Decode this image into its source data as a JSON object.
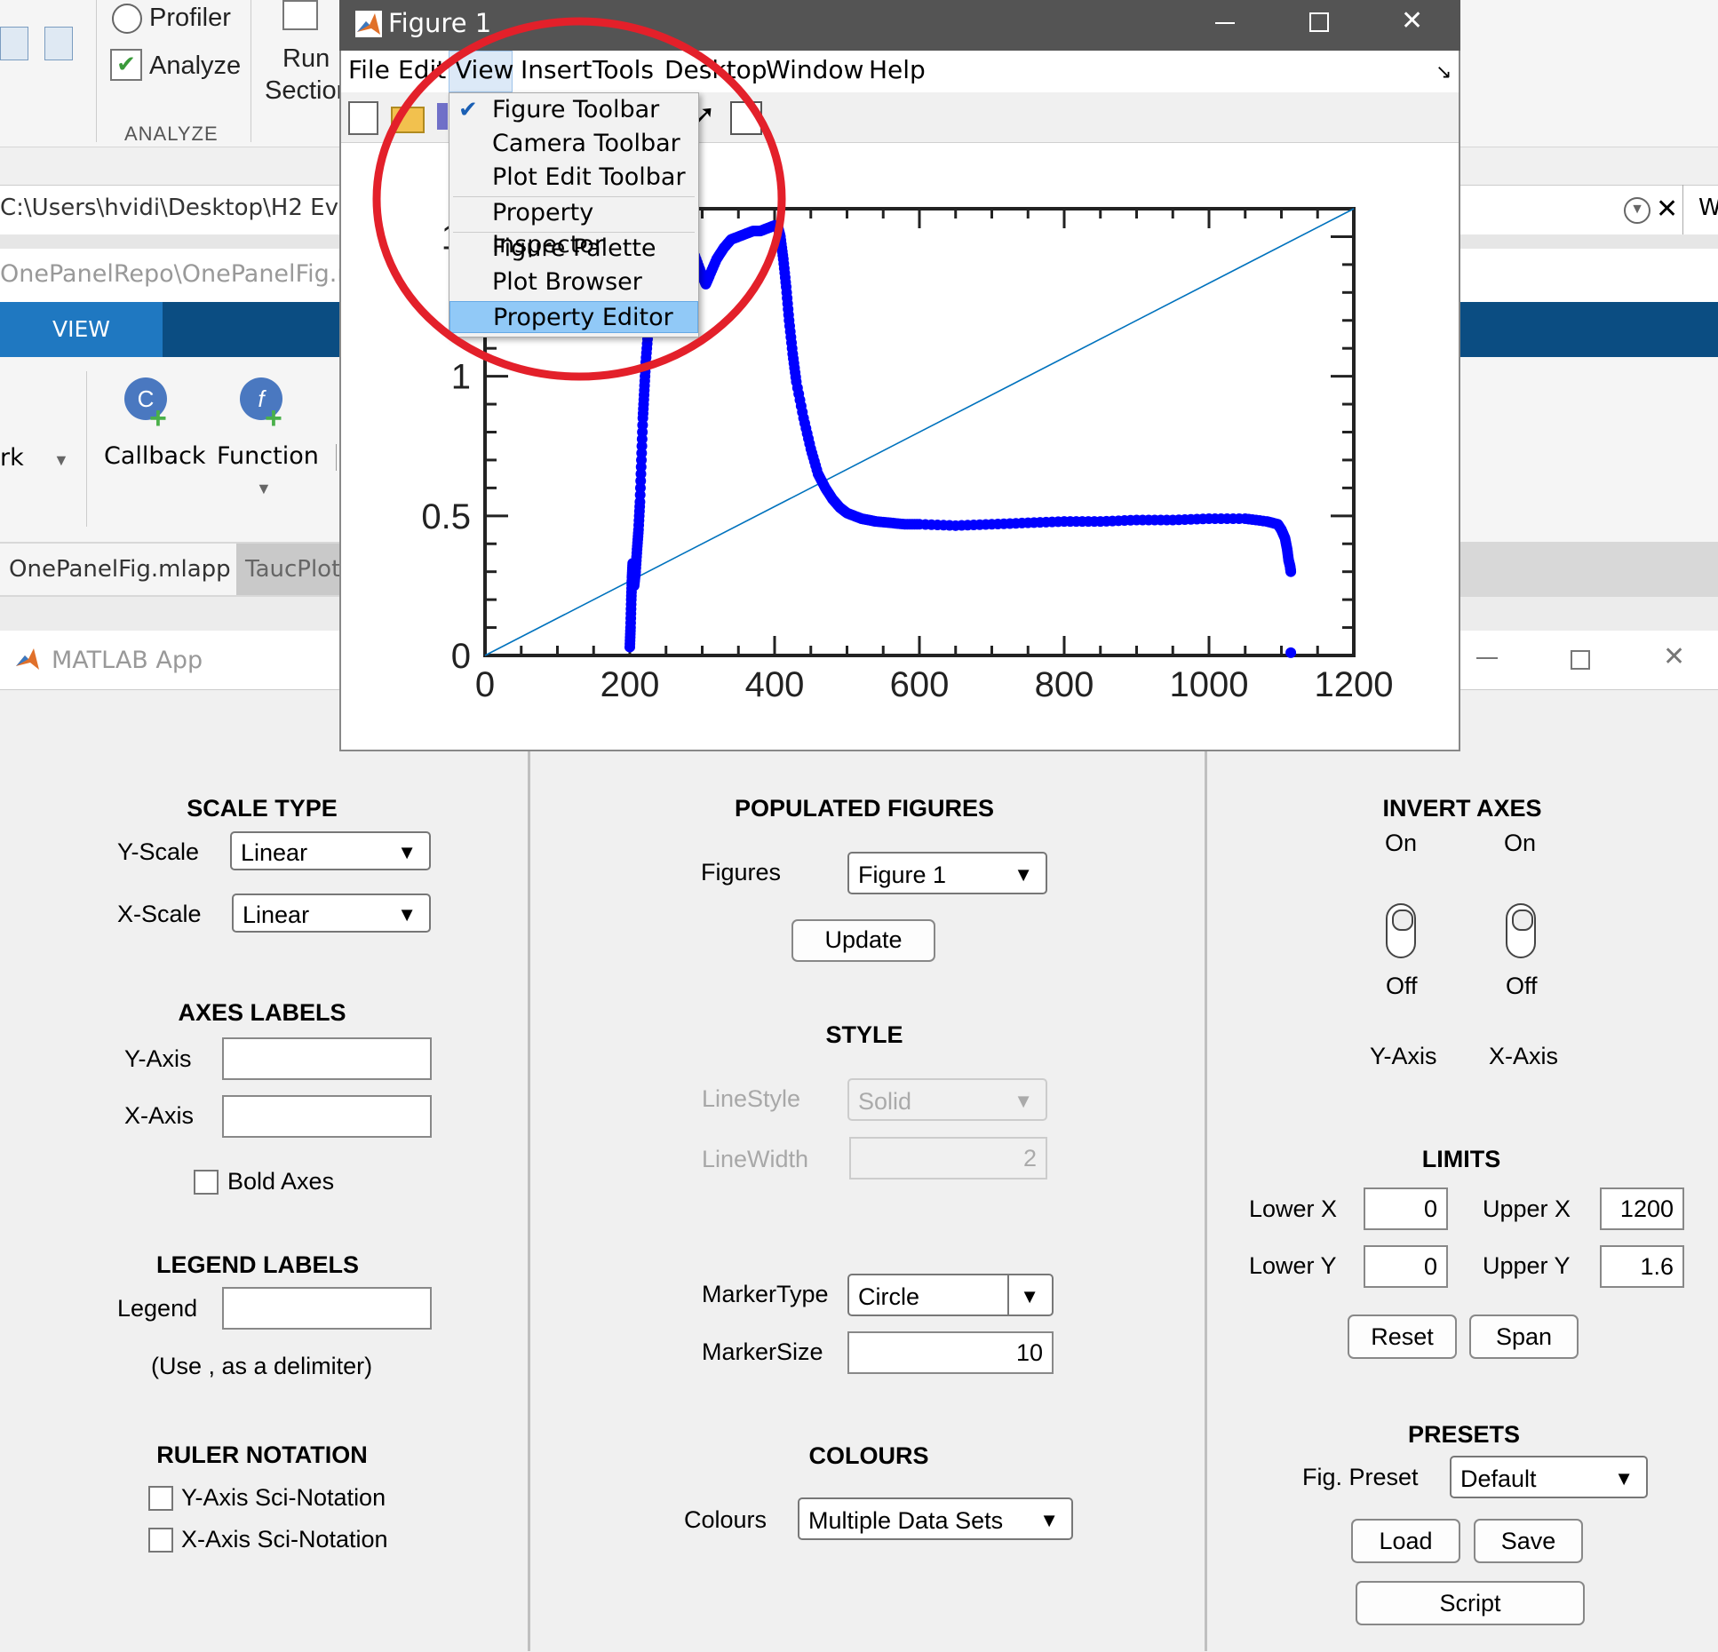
{
  "background": {
    "ribbon": {
      "profiler": "Profiler",
      "analyze": "Analyze",
      "run_section_1": "Run",
      "run_section_2": "Section",
      "group_label": "ANALYZE"
    },
    "path": "C:\\Users\\hvidi\\Desktop\\H2 Evolu",
    "app_path": "OnePanelRepo\\OnePanelFig.mlap",
    "view_tab": "VIEW",
    "toolstrip": {
      "callback": "Callback",
      "function": "Function",
      "left_cut": "rk"
    },
    "doc_tabs": [
      "OnePanelFig.mlapp",
      "TaucPlot"
    ],
    "right_edge_char": "W"
  },
  "figure": {
    "title": "Figure 1",
    "menus": [
      "File",
      "Edit",
      "View",
      "Insert",
      "Tools",
      "Desktop",
      "Window",
      "Help"
    ],
    "view_menu": {
      "items": [
        {
          "label": "Figure Toolbar",
          "checked": true
        },
        {
          "label": "Camera Toolbar",
          "checked": false
        },
        {
          "label": "Plot Edit Toolbar",
          "checked": false
        },
        {
          "label": "Property Inspector",
          "checked": false
        },
        {
          "label": "Figure Palette",
          "checked": false
        },
        {
          "label": "Plot Browser",
          "checked": false
        },
        {
          "label": "Property Editor",
          "checked": false,
          "highlighted": true
        }
      ]
    },
    "annotation_color": "#e3202a"
  },
  "chart_data": {
    "type": "scatter",
    "title": "",
    "xlabel": "",
    "ylabel": "",
    "xlim": [
      0,
      1200
    ],
    "ylim": [
      0,
      1.6
    ],
    "x_ticks": [
      "0",
      "200",
      "400",
      "600",
      "800",
      "1000",
      "1200"
    ],
    "y_ticks": [
      "0",
      "0.5",
      "1",
      "1."
    ],
    "series": [
      {
        "marker_color": "#0000ff",
        "x": [
          200,
          201,
          202,
          203,
          204,
          205,
          206,
          208,
          210,
          212,
          214,
          216,
          218,
          220,
          222,
          225,
          228,
          232,
          236,
          240,
          250,
          260,
          270,
          280,
          290,
          300,
          305,
          310,
          320,
          330,
          340,
          350,
          360,
          370,
          380,
          390,
          400,
          405,
          408,
          412,
          416,
          420,
          425,
          430,
          440,
          450,
          460,
          470,
          480,
          490,
          500,
          510,
          520,
          530,
          540,
          560,
          580,
          600,
          650,
          700,
          750,
          800,
          850,
          900,
          950,
          1000,
          1050,
          1080,
          1095,
          1100,
          1105,
          1108,
          1110,
          1112,
          1113
        ],
        "y": [
          0.03,
          0.1,
          0.2,
          0.28,
          0.33,
          0.3,
          0.25,
          0.3,
          0.38,
          0.45,
          0.55,
          0.7,
          0.85,
          0.95,
          1.05,
          1.15,
          1.25,
          1.32,
          1.38,
          1.42,
          1.45,
          1.47,
          1.48,
          1.47,
          1.43,
          1.36,
          1.33,
          1.36,
          1.42,
          1.46,
          1.49,
          1.5,
          1.51,
          1.52,
          1.52,
          1.53,
          1.54,
          1.53,
          1.5,
          1.42,
          1.32,
          1.2,
          1.08,
          0.98,
          0.85,
          0.74,
          0.65,
          0.6,
          0.56,
          0.53,
          0.51,
          0.5,
          0.49,
          0.485,
          0.48,
          0.475,
          0.47,
          0.47,
          0.465,
          0.47,
          0.475,
          0.48,
          0.48,
          0.485,
          0.485,
          0.49,
          0.49,
          0.48,
          0.47,
          0.45,
          0.42,
          0.38,
          0.34,
          0.32,
          0.3
        ]
      },
      {
        "type": "line",
        "line_color": "#0072bd",
        "x": [
          0,
          1200
        ],
        "y": [
          0,
          1.6
        ]
      }
    ],
    "grid": false
  },
  "app": {
    "title": "MATLAB App",
    "scale_type": {
      "header": "SCALE TYPE",
      "y_label": "Y-Scale",
      "y_value": "Linear",
      "x_label": "X-Scale",
      "x_value": "Linear"
    },
    "axes_labels": {
      "header": "AXES LABELS",
      "y_label": "Y-Axis",
      "y_value": "",
      "x_label": "X-Axis",
      "x_value": "",
      "bold_label": "Bold Axes",
      "bold_checked": false
    },
    "legend_labels": {
      "header": "LEGEND LABELS",
      "legend_label": "Legend",
      "legend_value": "",
      "hint": "(Use , as a delimiter)"
    },
    "ruler_notation": {
      "header": "RULER NOTATION",
      "y_label": "Y-Axis Sci-Notation",
      "x_label": "X-Axis Sci-Notation"
    },
    "populated_figures": {
      "header": "POPULATED FIGURES",
      "figures_label": "Figures",
      "figures_value": "Figure 1",
      "update_label": "Update"
    },
    "style": {
      "header": "STYLE",
      "linestyle_label": "LineStyle",
      "linestyle_value": "Solid",
      "linewidth_label": "LineWidth",
      "linewidth_value": "2",
      "markertype_label": "MarkerType",
      "markertype_value": "Circle",
      "markersize_label": "MarkerSize",
      "markersize_value": "10"
    },
    "colours": {
      "header": "COLOURS",
      "label": "Colours",
      "value": "Multiple Data Sets"
    },
    "invert_axes": {
      "header": "INVERT AXES",
      "on_label": "On",
      "off_label": "Off",
      "y_axis": "Y-Axis",
      "x_axis": "X-Axis"
    },
    "limits": {
      "header": "LIMITS",
      "lower_x_label": "Lower X",
      "lower_x": "0",
      "upper_x_label": "Upper X",
      "upper_x": "1200",
      "lower_y_label": "Lower Y",
      "lower_y": "0",
      "upper_y_label": "Upper Y",
      "upper_y": "1.6",
      "reset_label": "Reset",
      "span_label": "Span"
    },
    "presets": {
      "header": "PRESETS",
      "label": "Fig. Preset",
      "value": "Default",
      "load_label": "Load",
      "save_label": "Save",
      "script_label": "Script"
    }
  }
}
